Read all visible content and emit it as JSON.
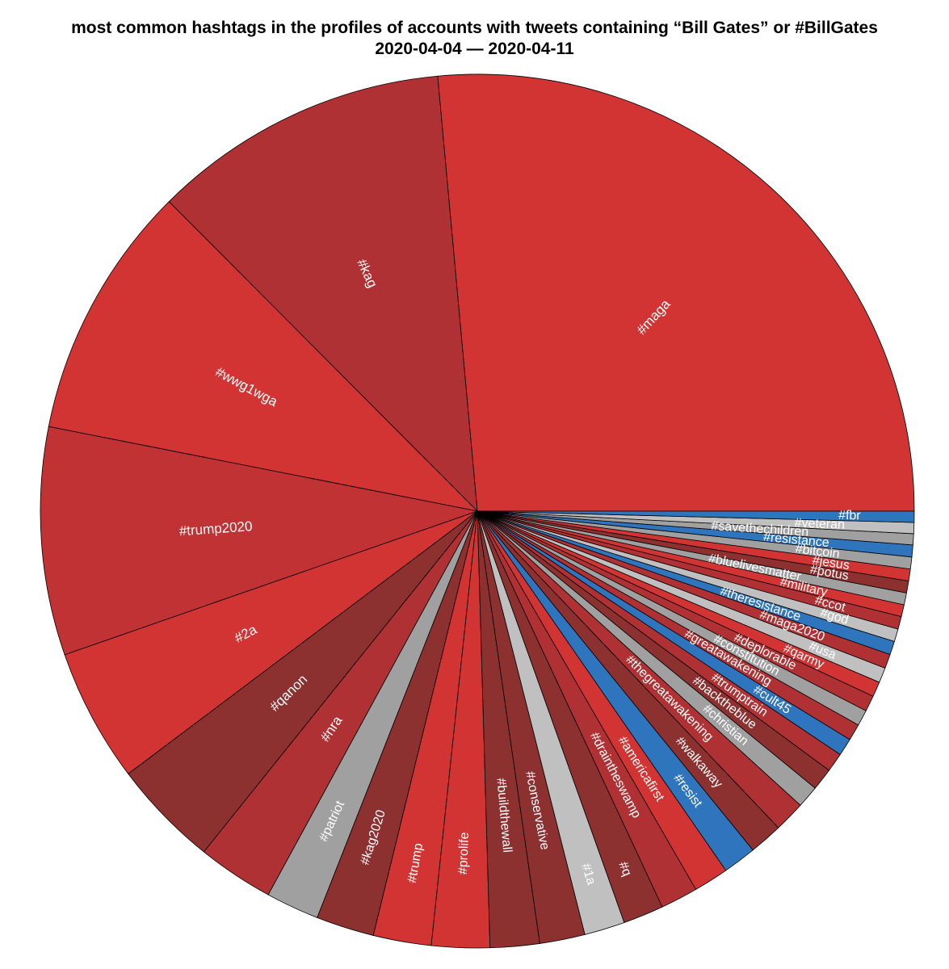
{
  "chart_data": {
    "type": "pie",
    "title": "most common hashtags in the profiles of accounts with tweets containing “Bill Gates” or #BillGates",
    "subtitle": "2020-04-04 — 2020-04-11",
    "slices": [
      {
        "label": "#maga",
        "value": 90.0,
        "color": "#d13433"
      },
      {
        "label": "#kag",
        "value": 37.5,
        "color": "#b03133"
      },
      {
        "label": "#wwg1wga",
        "value": 32.1,
        "color": "#d13433"
      },
      {
        "label": "#trump2020",
        "value": 28.7,
        "color": "#c03233"
      },
      {
        "label": "#2a",
        "value": 16.8,
        "color": "#d13433"
      },
      {
        "label": "#qanon",
        "value": 13.5,
        "color": "#8c3030"
      },
      {
        "label": "#nra",
        "value": 9.6,
        "color": "#b03133"
      },
      {
        "label": "#patriot",
        "value": 6.7,
        "color": "#a0a0a0"
      },
      {
        "label": "#kag2020",
        "value": 7.3,
        "color": "#8c3030"
      },
      {
        "label": "#trump",
        "value": 7.3,
        "color": "#d13433"
      },
      {
        "label": "#prolife",
        "value": 7.3,
        "color": "#d13433"
      },
      {
        "label": "#buildthewall",
        "value": 6.2,
        "color": "#8c3030"
      },
      {
        "label": "#conservative",
        "value": 5.7,
        "color": "#8c3030"
      },
      {
        "label": "#1a",
        "value": 5.1,
        "color": "#c0c0c0"
      },
      {
        "label": "#q",
        "value": 5.1,
        "color": "#8c3030"
      },
      {
        "label": "#draintheswamp",
        "value": 4.7,
        "color": "#b03133"
      },
      {
        "label": "#americafirst",
        "value": 4.4,
        "color": "#d13433"
      },
      {
        "label": "#resist",
        "value": 4.2,
        "color": "#2f75bd"
      },
      {
        "label": "#walkaway",
        "value": 4.2,
        "color": "#8c3030"
      },
      {
        "label": "#thegreatawakening",
        "value": 3.9,
        "color": "#b03133"
      },
      {
        "label": "#christian",
        "value": 2.8,
        "color": "#a0a0a0"
      },
      {
        "label": "#backtheblue",
        "value": 2.8,
        "color": "#8c3030"
      },
      {
        "label": "#trumptrain",
        "value": 2.4,
        "color": "#b03133"
      },
      {
        "label": "#cult45",
        "value": 2.2,
        "color": "#2f75bd"
      },
      {
        "label": "#greatawakening",
        "value": 2.1,
        "color": "#b03133"
      },
      {
        "label": "#constitution",
        "value": 2.0,
        "color": "#a0a0a0"
      },
      {
        "label": "#deplorable",
        "value": 2.0,
        "color": "#b03133"
      },
      {
        "label": "#qarmy",
        "value": 1.9,
        "color": "#d13433"
      },
      {
        "label": "#usa",
        "value": 1.9,
        "color": "#c0c0c0"
      },
      {
        "label": "#maga2020",
        "value": 1.8,
        "color": "#b03133"
      },
      {
        "label": "#theresistance",
        "value": 1.7,
        "color": "#2f75bd"
      },
      {
        "label": "#god",
        "value": 1.6,
        "color": "#c0c0c0"
      },
      {
        "label": "#ccot",
        "value": 1.6,
        "color": "#b03133"
      },
      {
        "label": "#military",
        "value": 1.5,
        "color": "#d13433"
      },
      {
        "label": "#bluelivesmatter",
        "value": 1.5,
        "color": "#a0a0a0"
      },
      {
        "label": "#potus",
        "value": 1.5,
        "color": "#8c3030"
      },
      {
        "label": "#jesus",
        "value": 1.5,
        "color": "#d13433"
      },
      {
        "label": "#bitcoin",
        "value": 1.5,
        "color": "#a0a0a0"
      },
      {
        "label": "#resistance",
        "value": 1.5,
        "color": "#2f75bd"
      },
      {
        "label": "#savethechildren",
        "value": 1.4,
        "color": "#a0a0a0"
      },
      {
        "label": "#veteran",
        "value": 1.4,
        "color": "#c0c0c0"
      },
      {
        "label": "#fbr",
        "value": 1.4,
        "color": "#2f75bd"
      }
    ]
  }
}
